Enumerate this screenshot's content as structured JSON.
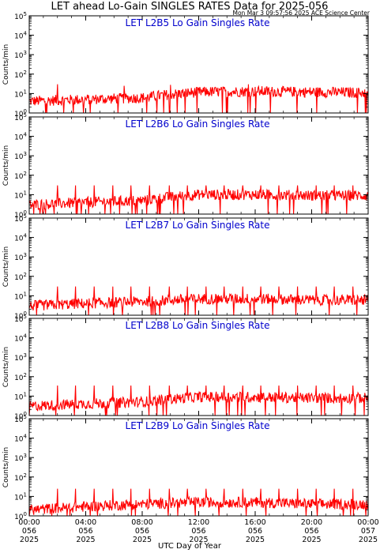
{
  "title": "LET ahead Lo-Gain SINGLES RATES Data for 2025-056",
  "timestamp": "Mon Mar  3 09:57:56 2025 ACE Science Center",
  "xlabel": "UTC Day of Year",
  "ylabel": "Counts/min",
  "colors": {
    "trace": "#ff0000",
    "panel_title": "#0000cc",
    "axes": "#000000"
  },
  "chart_data": [
    {
      "type": "line",
      "title": "LET L2B5 Lo Gain Singles Rate",
      "ylabel": "Counts/min",
      "yscale": "log",
      "ylim": [
        1,
        100000
      ],
      "yticks": [
        "10^0",
        "10^1",
        "10^2",
        "10^3",
        "10^4",
        "10^5"
      ],
      "xlim_hours": [
        0,
        24
      ],
      "series": [
        {
          "baseline_hours": [
            0,
            4,
            8,
            12,
            16,
            20,
            24
          ],
          "values": [
            4,
            5,
            6,
            12,
            13,
            12,
            11
          ],
          "spike_hours": [
            2.0,
            6.7,
            10.0,
            15.5
          ],
          "spike_values": [
            30,
            25,
            28,
            30
          ]
        }
      ]
    },
    {
      "type": "line",
      "title": "LET L2B6 Lo Gain Singles Rate",
      "ylabel": "Counts/min",
      "yscale": "log",
      "ylim": [
        1,
        100000
      ],
      "yticks": [
        "10^0",
        "10^1",
        "10^2",
        "10^3",
        "10^4",
        "10^5"
      ],
      "xlim_hours": [
        0,
        24
      ],
      "series": [
        {
          "baseline_hours": [
            0,
            4,
            8,
            12,
            16,
            20,
            24
          ],
          "values": [
            3,
            4,
            5,
            10,
            10,
            9,
            9
          ],
          "spike_hours": [
            2.0,
            3.3,
            4.6,
            5.9,
            7.2,
            8.5,
            9.9,
            11.2,
            12.5,
            13.8,
            15.1,
            16.4,
            17.7,
            19.0,
            20.3,
            21.6,
            22.9
          ],
          "spike_values": [
            30,
            30,
            30,
            30,
            30,
            30,
            30,
            30,
            30,
            30,
            30,
            30,
            30,
            30,
            30,
            30,
            30
          ]
        }
      ]
    },
    {
      "type": "line",
      "title": "LET L2B7 Lo Gain Singles Rate",
      "ylabel": "Counts/min",
      "yscale": "log",
      "ylim": [
        1,
        100000
      ],
      "yticks": [
        "10^0",
        "10^1",
        "10^2",
        "10^3",
        "10^4",
        "10^5"
      ],
      "xlim_hours": [
        0,
        24
      ],
      "series": [
        {
          "baseline_hours": [
            0,
            4,
            8,
            12,
            16,
            20,
            24
          ],
          "values": [
            3,
            4,
            5,
            7,
            7,
            6,
            6
          ],
          "spike_hours": [
            2.0,
            3.3,
            4.6,
            5.9,
            7.2,
            8.5,
            9.9,
            11.2,
            12.5,
            13.8,
            15.1,
            16.4,
            17.7,
            19.0,
            20.3,
            21.6,
            22.9
          ],
          "spike_values": [
            30,
            30,
            30,
            30,
            30,
            30,
            30,
            30,
            30,
            30,
            30,
            30,
            30,
            30,
            30,
            30,
            30
          ]
        }
      ]
    },
    {
      "type": "line",
      "title": "LET L2B8 Lo Gain Singles Rate",
      "ylabel": "Counts/min",
      "yscale": "log",
      "ylim": [
        1,
        100000
      ],
      "yticks": [
        "10^0",
        "10^1",
        "10^2",
        "10^3",
        "10^4",
        "10^5"
      ],
      "xlim_hours": [
        0,
        24
      ],
      "series": [
        {
          "baseline_hours": [
            0,
            4,
            8,
            12,
            16,
            20,
            24
          ],
          "values": [
            3,
            4,
            5,
            9,
            9,
            8,
            8
          ],
          "spike_hours": [
            2.0,
            3.3,
            4.6,
            5.9,
            7.2,
            8.5,
            9.9,
            11.2,
            12.5,
            13.8,
            15.1,
            16.4,
            17.7,
            19.0,
            20.3,
            21.6,
            22.9
          ],
          "spike_values": [
            35,
            35,
            35,
            35,
            35,
            35,
            35,
            35,
            35,
            35,
            35,
            35,
            35,
            35,
            35,
            35,
            35
          ]
        }
      ]
    },
    {
      "type": "line",
      "title": "LET L2B9 Lo Gain Singles Rate",
      "ylabel": "Counts/min",
      "yscale": "log",
      "ylim": [
        1,
        100000
      ],
      "yticks": [
        "10^0",
        "10^1",
        "10^2",
        "10^3",
        "10^4",
        "10^5"
      ],
      "xlim_hours": [
        0,
        24
      ],
      "series": [
        {
          "baseline_hours": [
            0,
            4,
            8,
            12,
            16,
            20,
            24
          ],
          "values": [
            2,
            3,
            4,
            5,
            5,
            4,
            4
          ],
          "spike_hours": [
            2.0,
            3.3,
            4.6,
            5.9,
            7.2,
            8.5,
            9.9,
            11.2,
            12.5,
            13.8,
            15.1,
            16.4,
            17.7,
            19.0,
            20.3,
            21.6,
            22.9
          ],
          "spike_values": [
            25,
            25,
            25,
            25,
            25,
            25,
            25,
            25,
            25,
            25,
            25,
            25,
            25,
            25,
            25,
            25,
            25
          ]
        }
      ]
    }
  ],
  "x_ticks": [
    {
      "hour": 0,
      "time": "00:00",
      "doy": "056",
      "year": "2025"
    },
    {
      "hour": 4,
      "time": "04:00",
      "doy": "056",
      "year": "2025"
    },
    {
      "hour": 8,
      "time": "08:00",
      "doy": "056",
      "year": "2025"
    },
    {
      "hour": 12,
      "time": "12:00",
      "doy": "056",
      "year": "2025"
    },
    {
      "hour": 16,
      "time": "16:00",
      "doy": "056",
      "year": "2025"
    },
    {
      "hour": 20,
      "time": "20:00",
      "doy": "056",
      "year": "2025"
    },
    {
      "hour": 24,
      "time": "00:00",
      "doy": "057",
      "year": "2025"
    }
  ]
}
